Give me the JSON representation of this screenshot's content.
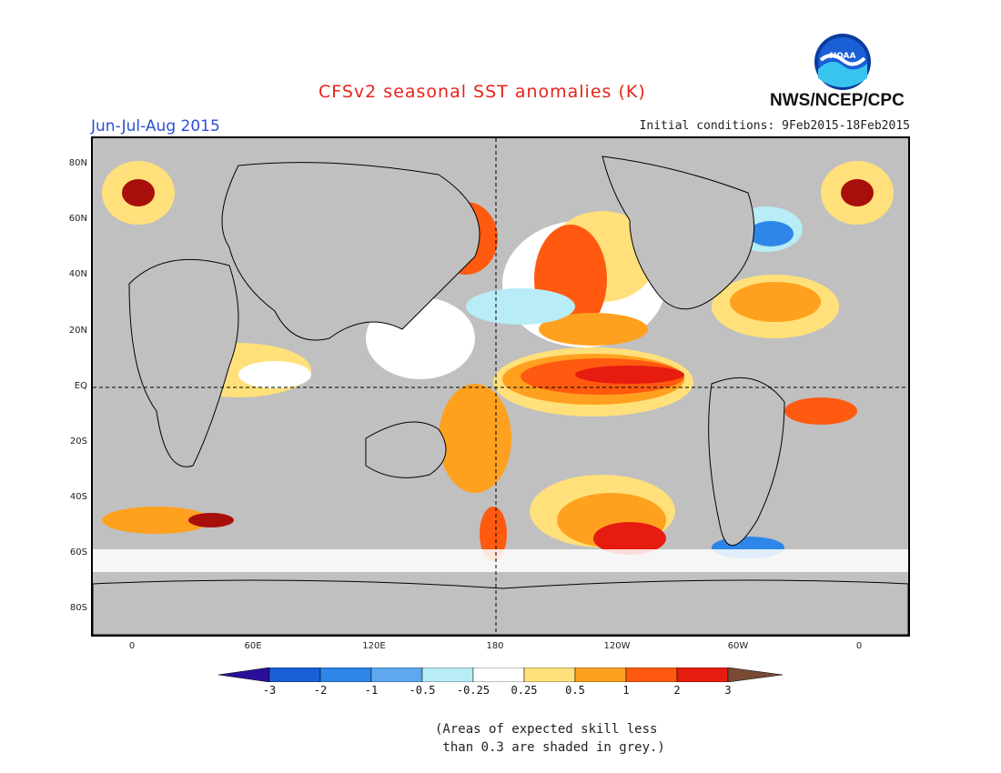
{
  "header": {
    "title": "CFSv2 seasonal SST anomalies (K)",
    "season": "Jun-Jul-Aug 2015",
    "initial_conditions": "Initial conditions: 9Feb2015-18Feb2015",
    "agency": "NWS/NCEP/CPC",
    "logo_text": "NOAA"
  },
  "axes": {
    "lat_labels": [
      "80N",
      "60N",
      "40N",
      "20N",
      "EQ",
      "20S",
      "40S",
      "60S",
      "80S"
    ],
    "lon_labels": [
      "0",
      "60E",
      "120E",
      "180",
      "120W",
      "60W",
      "0"
    ]
  },
  "colorbar": {
    "labels": [
      "-3",
      "-2",
      "-1",
      "-0.5",
      "-0.25",
      "0.25",
      "0.5",
      "1",
      "2",
      "3"
    ],
    "colors": [
      "#2a0f9a",
      "#1a5fd6",
      "#2e86e8",
      "#5fa8f0",
      "#b8ecf6",
      "#ffffff",
      "#ffe07a",
      "#ffa11f",
      "#ff5a10",
      "#e61c10",
      "#a80f0a",
      "#7a4a35"
    ]
  },
  "note": "(Areas of expected skill less\n than 0.3 are shaded in grey.)",
  "map_colors": {
    "grey": "#c0c0c0",
    "land": "#c0c0c0"
  }
}
